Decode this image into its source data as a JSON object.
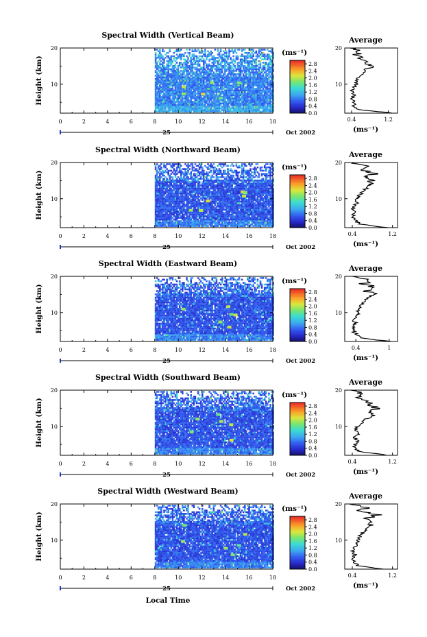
{
  "figure": {
    "date_label": "Oct 2002",
    "day_label": "25",
    "xlabel": "Local Time",
    "ylabel": "Height (km)",
    "colorbar_unit": "(ms⁻¹)",
    "colorbar_ticks": [
      "0.0",
      "0.4",
      "0.8",
      "1.2",
      "1.6",
      "2.0",
      "2.4",
      "2.8"
    ],
    "average_title": "Average",
    "average_xlabel": "(ms⁻¹)"
  },
  "chart_data": [
    {
      "type": "heatmap",
      "title": "Spectral Width (Vertical Beam)",
      "xlabel": "Local Time",
      "ylabel": "Height (km)",
      "xlim": [
        0,
        18
      ],
      "ylim": [
        2,
        20
      ],
      "xticks": [
        0,
        2,
        4,
        6,
        8,
        10,
        12,
        14,
        16,
        18
      ],
      "yticks": [
        10,
        20
      ],
      "data_start_hour": 8,
      "data_end_hour": 18,
      "value_unit": "ms-1",
      "clim": [
        0.0,
        3.0
      ],
      "colorbar_ticks": [
        0.0,
        0.4,
        0.8,
        1.2,
        1.6,
        2.0,
        2.4,
        2.8
      ],
      "average_profile": {
        "xlim": [
          0.25,
          1.4
        ],
        "xticks": [
          0.4,
          1.2
        ],
        "yticks": [
          10,
          20
        ],
        "height_km": [
          2,
          3,
          4,
          5,
          6,
          7,
          8,
          9,
          10,
          11,
          12,
          13,
          14,
          15,
          16,
          17,
          18,
          19,
          20
        ],
        "value": [
          1.3,
          0.55,
          0.45,
          0.45,
          0.4,
          0.45,
          0.4,
          0.45,
          0.5,
          0.5,
          0.55,
          0.65,
          0.7,
          0.85,
          0.7,
          0.6,
          0.5,
          0.55,
          0.45
        ]
      }
    },
    {
      "type": "heatmap",
      "title": "Spectral Width (Northward Beam)",
      "xlabel": "Local Time",
      "ylabel": "Height (km)",
      "xlim": [
        0,
        18
      ],
      "ylim": [
        2,
        20
      ],
      "xticks": [
        0,
        2,
        4,
        6,
        8,
        10,
        12,
        14,
        16,
        18
      ],
      "yticks": [
        10,
        20
      ],
      "data_start_hour": 8,
      "data_end_hour": 18,
      "value_unit": "ms-1",
      "clim": [
        0.0,
        3.0
      ],
      "colorbar_ticks": [
        0.0,
        0.4,
        0.8,
        1.2,
        1.6,
        2.0,
        2.4,
        2.8
      ],
      "average_profile": {
        "xlim": [
          0.25,
          1.3
        ],
        "xticks": [
          0.4,
          1.2
        ],
        "yticks": [
          10,
          20
        ],
        "height_km": [
          2,
          3,
          4,
          5,
          6,
          7,
          8,
          9,
          10,
          11,
          12,
          13,
          14,
          15,
          16,
          17,
          18,
          19,
          20
        ],
        "value": [
          1.1,
          0.55,
          0.45,
          0.4,
          0.45,
          0.4,
          0.45,
          0.5,
          0.5,
          0.55,
          0.6,
          0.7,
          0.75,
          0.8,
          0.7,
          0.85,
          0.6,
          0.75,
          0.35
        ]
      }
    },
    {
      "type": "heatmap",
      "title": "Spectral Width (Eastward Beam)",
      "xlabel": "Local Time",
      "ylabel": "Height (km)",
      "xlim": [
        0,
        18
      ],
      "ylim": [
        2,
        20
      ],
      "xticks": [
        0,
        2,
        4,
        6,
        8,
        10,
        12,
        14,
        16,
        18
      ],
      "yticks": [
        10,
        20
      ],
      "data_start_hour": 8,
      "data_end_hour": 18,
      "value_unit": "ms-1",
      "clim": [
        0.0,
        3.0
      ],
      "colorbar_ticks": [
        0.0,
        0.4,
        0.8,
        1.2,
        1.6,
        2.0,
        2.4,
        2.8
      ],
      "average_profile": {
        "xlim": [
          0.2,
          1.15
        ],
        "xticks": [
          0.4,
          1.0
        ],
        "yticks": [
          10,
          20
        ],
        "height_km": [
          2,
          3,
          4,
          5,
          6,
          7,
          8,
          9,
          10,
          11,
          12,
          13,
          14,
          15,
          16,
          17,
          18,
          19,
          20
        ],
        "value": [
          1.0,
          0.5,
          0.4,
          0.35,
          0.35,
          0.4,
          0.35,
          0.4,
          0.45,
          0.45,
          0.5,
          0.55,
          0.6,
          0.75,
          0.6,
          0.7,
          0.55,
          0.65,
          0.35
        ]
      }
    },
    {
      "type": "heatmap",
      "title": "Spectral Width (Southward Beam)",
      "xlabel": "Local Time",
      "ylabel": "Height (km)",
      "xlim": [
        0,
        18
      ],
      "ylim": [
        2,
        20
      ],
      "xticks": [
        0,
        2,
        4,
        6,
        8,
        10,
        12,
        14,
        16,
        18
      ],
      "yticks": [
        10,
        20
      ],
      "data_start_hour": 8,
      "data_end_hour": 18,
      "value_unit": "ms-1",
      "clim": [
        0.0,
        3.0
      ],
      "colorbar_ticks": [
        0.0,
        0.4,
        0.8,
        1.2,
        1.6,
        2.0,
        2.4,
        2.8
      ],
      "average_profile": {
        "xlim": [
          0.25,
          1.3
        ],
        "xticks": [
          0.4,
          1.2
        ],
        "yticks": [
          10,
          20
        ],
        "height_km": [
          2,
          3,
          4,
          5,
          6,
          7,
          8,
          9,
          10,
          11,
          12,
          13,
          14,
          15,
          16,
          17,
          18,
          19,
          20
        ],
        "value": [
          1.1,
          0.55,
          0.45,
          0.45,
          0.5,
          0.45,
          0.55,
          0.45,
          0.5,
          0.6,
          0.65,
          0.85,
          0.75,
          0.9,
          0.7,
          0.75,
          0.55,
          0.6,
          0.4
        ]
      }
    },
    {
      "type": "heatmap",
      "title": "Spectral Width (Westward Beam)",
      "xlabel": "Local Time",
      "ylabel": "Height (km)",
      "xlim": [
        0,
        18
      ],
      "ylim": [
        2,
        20
      ],
      "xticks": [
        0,
        2,
        4,
        6,
        8,
        10,
        12,
        14,
        16,
        18
      ],
      "yticks": [
        10,
        20
      ],
      "data_start_hour": 8,
      "data_end_hour": 18,
      "value_unit": "ms-1",
      "clim": [
        0.0,
        3.0
      ],
      "colorbar_ticks": [
        0.0,
        0.4,
        0.8,
        1.2,
        1.6,
        2.0,
        2.4,
        2.8
      ],
      "average_profile": {
        "xlim": [
          0.25,
          1.3
        ],
        "xticks": [
          0.4,
          1.2
        ],
        "yticks": [
          10,
          20
        ],
        "height_km": [
          2,
          3,
          4,
          5,
          6,
          7,
          8,
          9,
          10,
          11,
          12,
          13,
          14,
          15,
          16,
          17,
          18,
          19,
          20
        ],
        "value": [
          1.0,
          0.5,
          0.45,
          0.4,
          0.45,
          0.4,
          0.45,
          0.5,
          0.5,
          0.55,
          0.6,
          0.7,
          0.75,
          0.8,
          0.7,
          0.9,
          0.55,
          0.7,
          0.35
        ]
      }
    }
  ]
}
